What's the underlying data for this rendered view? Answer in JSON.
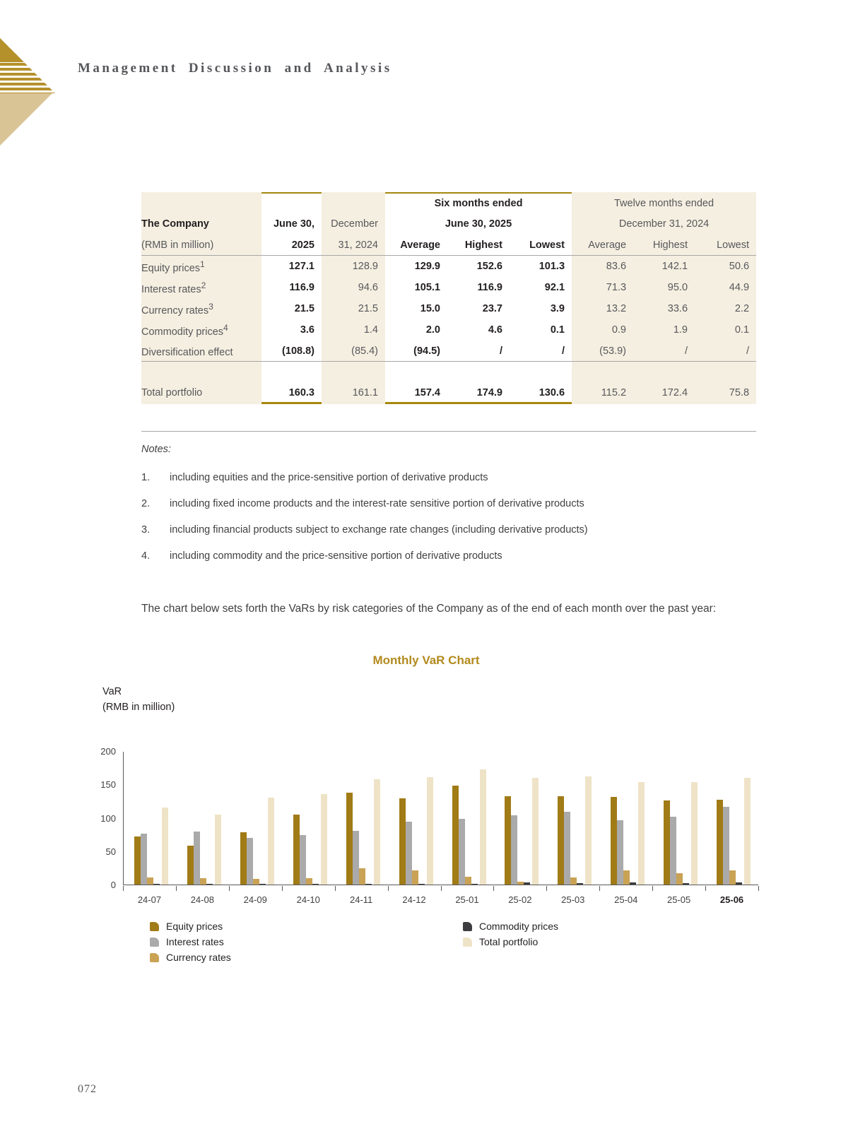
{
  "page": {
    "header_title": "Management Discussion and Analysis",
    "number": "072"
  },
  "table": {
    "company_label": "The Company",
    "unit_label": "(RMB in million)",
    "col_jun_line1": "June 30,",
    "col_jun_line2": "2025",
    "col_dec_line1": "December",
    "col_dec_line2": "31, 2024",
    "group_six_line1": "Six months ended",
    "group_six_line2": "June 30, 2025",
    "group_twelve_line1": "Twelve months ended",
    "group_twelve_line2": "December 31, 2024",
    "sub_headers": [
      "Average",
      "Highest",
      "Lowest"
    ],
    "rows": [
      {
        "label": "Equity prices",
        "sup": "1",
        "values": [
          "127.1",
          "128.9",
          "129.9",
          "152.6",
          "101.3",
          "83.6",
          "142.1",
          "50.6"
        ]
      },
      {
        "label": "Interest rates",
        "sup": "2",
        "values": [
          "116.9",
          "94.6",
          "105.1",
          "116.9",
          "92.1",
          "71.3",
          "95.0",
          "44.9"
        ]
      },
      {
        "label": "Currency rates",
        "sup": "3",
        "values": [
          "21.5",
          "21.5",
          "15.0",
          "23.7",
          "3.9",
          "13.2",
          "33.6",
          "2.2"
        ]
      },
      {
        "label": "Commodity prices",
        "sup": "4",
        "values": [
          "3.6",
          "1.4",
          "2.0",
          "4.6",
          "0.1",
          "0.9",
          "1.9",
          "0.1"
        ]
      },
      {
        "label": "Diversification effect",
        "sup": "",
        "values": [
          "(108.8)",
          "(85.4)",
          "(94.5)",
          "/",
          "/",
          "(53.9)",
          "/",
          "/"
        ]
      }
    ],
    "total_row": {
      "label": "Total portfolio",
      "values": [
        "160.3",
        "161.1",
        "157.4",
        "174.9",
        "130.6",
        "115.2",
        "172.4",
        "75.8"
      ]
    }
  },
  "notes": {
    "title": "Notes:",
    "items": [
      {
        "num": "1.",
        "text": "including equities and the price-sensitive portion of derivative products"
      },
      {
        "num": "2.",
        "text": "including fixed income products and the interest-rate sensitive portion of derivative products"
      },
      {
        "num": "3.",
        "text": "including financial products subject to exchange rate changes (including derivative products)"
      },
      {
        "num": "4.",
        "text": "including commodity and the price-sensitive portion of derivative products"
      }
    ]
  },
  "paragraph": "The chart below sets forth the VaRs by risk categories of the Company as of the end of each month over the past year:",
  "chart_data": {
    "type": "bar",
    "title": "Monthly VaR Chart",
    "y_axis_label_line1": "VaR",
    "y_axis_label_line2": "(RMB in million)",
    "ylim": [
      0,
      200
    ],
    "yticks": [
      0,
      50,
      100,
      150,
      200
    ],
    "grid": false,
    "legend_position": "bottom",
    "categories": [
      "24-07",
      "24-08",
      "24-09",
      "24-10",
      "24-11",
      "24-12",
      "25-01",
      "25-02",
      "25-03",
      "25-04",
      "25-05",
      "25-06"
    ],
    "highlighted_category": "25-06",
    "series": [
      {
        "name": "Equity prices",
        "color": "#a07b16",
        "values": [
          72,
          58,
          78,
          105,
          138,
          128.9,
          148,
          132,
          132,
          131,
          126,
          127.1
        ]
      },
      {
        "name": "Interest rates",
        "color": "#abaaab",
        "values": [
          76,
          79,
          70,
          74,
          80,
          94.6,
          98,
          104,
          109,
          96,
          102,
          116.9
        ]
      },
      {
        "name": "Currency rates",
        "color": "#c9a254",
        "values": [
          11,
          10,
          8,
          10,
          24,
          21.5,
          12,
          4,
          11,
          21,
          17,
          21.5
        ]
      },
      {
        "name": "Commodity prices",
        "color": "#3d3d3f",
        "values": [
          1,
          1,
          1,
          1,
          1.5,
          1.4,
          1,
          3,
          2,
          3,
          2,
          3.6
        ]
      },
      {
        "name": "Total portfolio",
        "color": "#efe3c7",
        "values": [
          115,
          105,
          130,
          135,
          158,
          161.1,
          173,
          160,
          162,
          153,
          153,
          160.3
        ]
      }
    ]
  }
}
